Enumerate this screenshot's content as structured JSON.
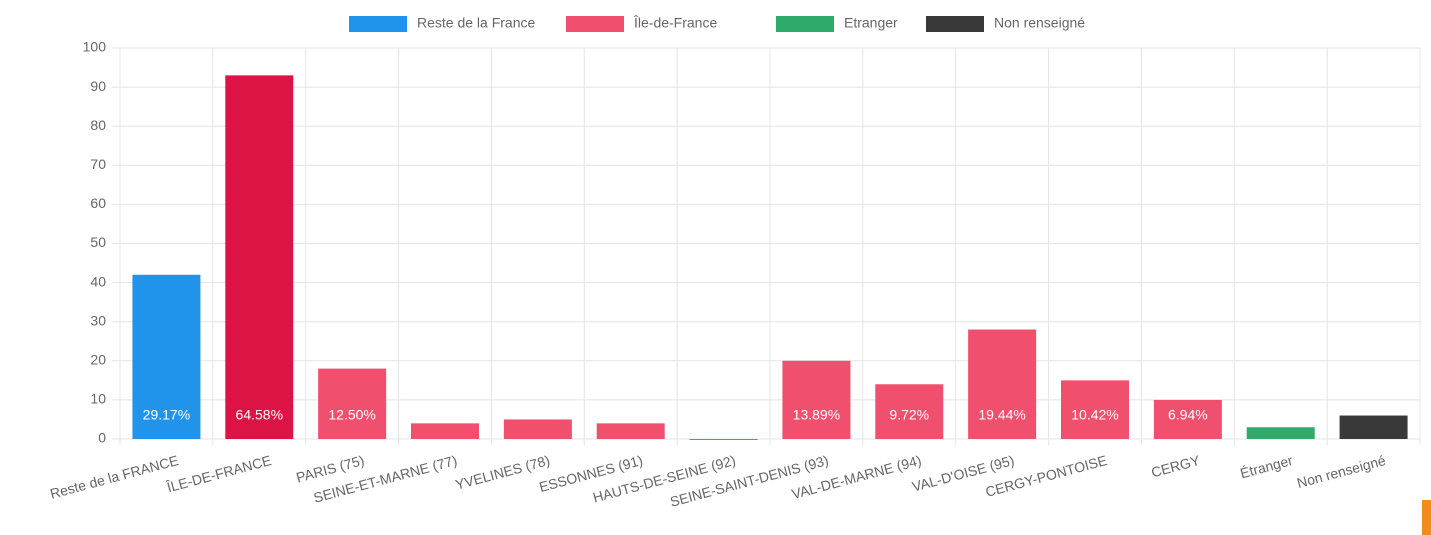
{
  "chart_data": {
    "type": "bar",
    "categories": [
      "Reste de la FRANCE",
      "ÎLE-DE-FRANCE",
      "PARIS (75)",
      "SEINE-ET-MARNE (77)",
      "YVELINES (78)",
      "ESSONNES (91)",
      "HAUTS-DE-SEINE (92)",
      "SEINE-SAINT-DENIS (93)",
      "VAL-DE-MARNE (94)",
      "VAL-D'OISE (95)",
      "CERGY-PONTOISE",
      "CERGY",
      "Étranger",
      "Non renseigné"
    ],
    "series": [
      {
        "name": "Reste de la France",
        "color": "#2193ea",
        "values": [
          42,
          null,
          null,
          null,
          null,
          null,
          null,
          null,
          null,
          null,
          null,
          null,
          null,
          null
        ]
      },
      {
        "name": "Île-de-France",
        "color": "#f0506e",
        "values": [
          null,
          93,
          18,
          4,
          5,
          4,
          0,
          20,
          14,
          28,
          15,
          10,
          null,
          null
        ]
      },
      {
        "name": "Etranger",
        "color": "#2eaa6a",
        "values": [
          null,
          null,
          null,
          null,
          null,
          null,
          null,
          null,
          null,
          null,
          null,
          null,
          3,
          null
        ]
      },
      {
        "name": "Non renseigné",
        "color": "#393939",
        "values": [
          null,
          null,
          null,
          null,
          null,
          null,
          null,
          null,
          null,
          null,
          null,
          null,
          null,
          6
        ]
      }
    ],
    "highlight_colors": [
      null,
      "#dc1446",
      null,
      null,
      null,
      null,
      null,
      null,
      null,
      null,
      null,
      null,
      null,
      null
    ],
    "percent_labels": [
      "29.17%",
      "64.58%",
      "12.50%",
      null,
      null,
      null,
      null,
      "13.89%",
      "9.72%",
      "19.44%",
      "10.42%",
      "6.94%",
      null,
      null
    ],
    "ylim": [
      0,
      100
    ],
    "yticks": [
      0,
      10,
      20,
      30,
      40,
      50,
      60,
      70,
      80,
      90,
      100
    ],
    "grid": true
  }
}
